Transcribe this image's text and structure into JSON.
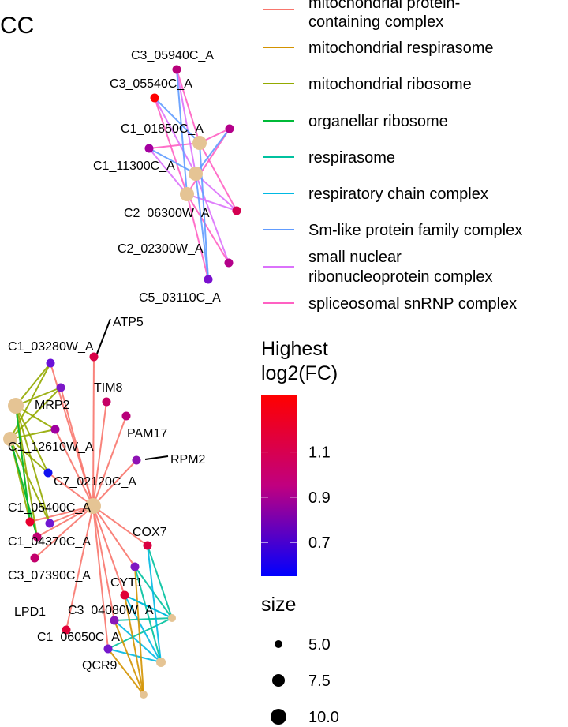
{
  "title": "CC",
  "colors": {
    "mitochondrial protein-containing complex": "#F8766D",
    "mitochondrial respirasome": "#D39200",
    "mitochondrial ribosome": "#93AA00",
    "organellar ribosome": "#00BA38",
    "respirasome": "#00C19F",
    "respiratory chain complex": "#00B9E3",
    "Sm-like protein family complex": "#619CFF",
    "small nuclear ribonucleoprotein complex": "#DB72FB",
    "spliceosomal snRNP complex": "#FF61C3",
    "term_node": "#E5C494"
  },
  "legend_edges": [
    {
      "line1": "mitochondrial protein-",
      "line2": "containing complex",
      "color": "#F8766D"
    },
    {
      "line1": "mitochondrial respirasome",
      "color": "#D39200"
    },
    {
      "line1": "mitochondrial ribosome",
      "color": "#93AA00"
    },
    {
      "line1": "organellar ribosome",
      "color": "#00BA38"
    },
    {
      "line1": "respirasome",
      "color": "#00C19F"
    },
    {
      "line1": "respiratory chain complex",
      "color": "#00B9E3"
    },
    {
      "line1": "Sm-like protein family complex",
      "color": "#619CFF"
    },
    {
      "line1": "small nuclear",
      "line2": "ribonucleoprotein complex",
      "color": "#DB72FB"
    },
    {
      "line1": "spliceosomal snRNP complex",
      "color": "#FF61C3"
    }
  ],
  "colorbar": {
    "title_line1": "Highest",
    "title_line2": "log2(FC)",
    "min": 0.55,
    "max": 1.35,
    "ticks": [
      {
        "value": 1.1,
        "label": "1.1"
      },
      {
        "value": 0.9,
        "label": "0.9"
      },
      {
        "value": 0.7,
        "label": "0.7"
      }
    ]
  },
  "size_legend": {
    "title": "size",
    "entries": [
      {
        "value": 5.0,
        "label": "5.0"
      },
      {
        "value": 7.5,
        "label": "7.5"
      },
      {
        "value": 10.0,
        "label": "10.0"
      }
    ]
  },
  "gene_labels": [
    "C3_05940C_A",
    "C3_05540C_A",
    "C1_01850C_A",
    "C1_11300C_A",
    "C2_06300W_A",
    "C2_02300W_A",
    "C5_03110C_A",
    "ATP5",
    "C1_03280W_A",
    "TIM8",
    "MRP2",
    "PAM17",
    "C1_12610W_A",
    "RPM2",
    "C7_02120C_A",
    "C1_05400C_A",
    "C1_04370C_A",
    "COX7",
    "C3_07390C_A",
    "CYT1",
    "C3_04080W_A",
    "LPD1",
    "C1_06050C_A",
    "QCR9"
  ]
}
